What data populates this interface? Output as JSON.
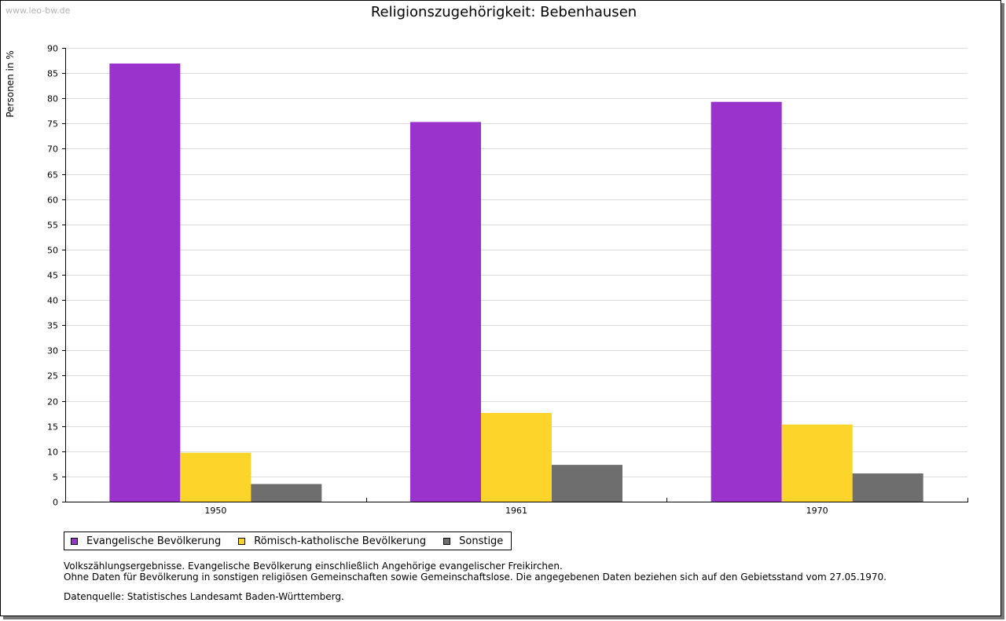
{
  "watermark": "www.leo-bw.de",
  "chart_data": {
    "type": "bar",
    "title": "Religionszugehörigkeit: Bebenhausen",
    "xlabel": "",
    "ylabel": "Personen in %",
    "ylim": [
      0,
      90
    ],
    "ytick_step": 5,
    "grid": true,
    "categories": [
      "1950",
      "1961",
      "1970"
    ],
    "series": [
      {
        "name": "Evangelische Bevölkerung",
        "color": "#9933cc",
        "values": [
          86.9,
          75.3,
          79.3
        ]
      },
      {
        "name": "Römisch-katholische Bevölkerung",
        "color": "#fdd52a",
        "values": [
          9.7,
          17.6,
          15.3
        ]
      },
      {
        "name": "Sonstige",
        "color": "#6e6e6e",
        "values": [
          3.5,
          7.3,
          5.6
        ]
      }
    ],
    "legend_position": "bottom-left"
  },
  "notes": [
    "Volkszählungsergebnisse. Evangelische Bevölkerung einschließlich Angehörige evangelischer Freikirchen.",
    "Ohne Daten für Bevölkerung in sonstigen religiösen Gemeinschaften sowie Gemeinschaftslose. Die angegebenen Daten beziehen sich auf den Gebietsstand vom 27.05.1970."
  ],
  "source": "Datenquelle: Statistisches Landesamt Baden-Württemberg."
}
